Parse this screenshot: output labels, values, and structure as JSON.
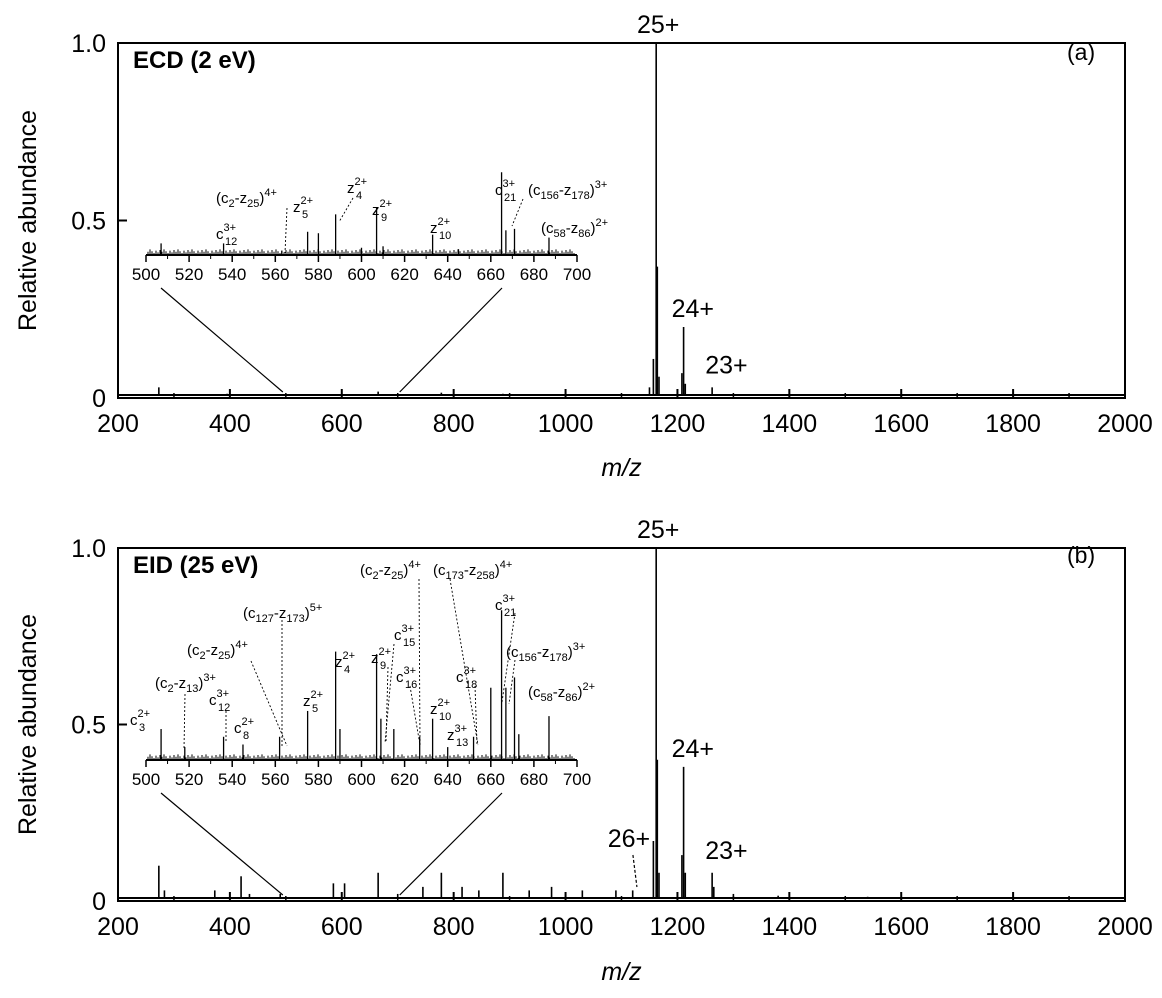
{
  "chart_data": [
    {
      "type": "line",
      "panel_letter": "(a)",
      "annotation": "ECD (2 eV)",
      "xlabel": "m/z",
      "ylabel": "Relative abundance",
      "xlim": [
        200,
        2000
      ],
      "ylim": [
        0,
        1.0
      ],
      "xticks": [
        200,
        400,
        600,
        800,
        1000,
        1200,
        1400,
        1600,
        1800,
        2000
      ],
      "ytick_labels": [
        "0",
        "0.5",
        "1.0"
      ],
      "yticks": [
        0,
        0.5,
        1.0
      ],
      "peaks": [
        {
          "x": 273,
          "y": 0.03
        },
        {
          "x": 395,
          "y": 0.012
        },
        {
          "x": 510,
          "y": 0.008
        },
        {
          "x": 588,
          "y": 0.01
        },
        {
          "x": 607,
          "y": 0.008
        },
        {
          "x": 665,
          "y": 0.018
        },
        {
          "x": 686,
          "y": 0.01
        },
        {
          "x": 778,
          "y": 0.015
        },
        {
          "x": 888,
          "y": 0.012
        },
        {
          "x": 1012,
          "y": 0.007
        },
        {
          "x": 1150,
          "y": 0.03
        },
        {
          "x": 1157,
          "y": 0.11
        },
        {
          "x": 1162,
          "y": 1.0
        },
        {
          "x": 1164,
          "y": 0.37
        },
        {
          "x": 1167,
          "y": 0.06
        },
        {
          "x": 1208,
          "y": 0.07
        },
        {
          "x": 1211,
          "y": 0.2
        },
        {
          "x": 1214,
          "y": 0.04
        },
        {
          "x": 1262,
          "y": 0.03
        },
        {
          "x": 1265,
          "y": 0.01
        }
      ],
      "peak_labels": [
        {
          "text": "25+",
          "x": 1162,
          "y": 1.0
        },
        {
          "text": "24+",
          "x": 1211,
          "y": 0.2
        },
        {
          "text": "23+",
          "x": 1264,
          "y": 0.03
        }
      ],
      "zoom_range": [
        500,
        700
      ],
      "inset": {
        "xlim": [
          500,
          700
        ],
        "xticks": [
          500,
          520,
          540,
          560,
          580,
          600,
          620,
          640,
          660,
          680,
          700
        ],
        "peaks": [
          {
            "x": 507,
            "y": 0.08
          },
          {
            "x": 536,
            "y": 0.08
          },
          {
            "x": 563,
            "y": 0.03
          },
          {
            "x": 575,
            "y": 0.16
          },
          {
            "x": 580,
            "y": 0.15
          },
          {
            "x": 588,
            "y": 0.28
          },
          {
            "x": 600,
            "y": 0.05
          },
          {
            "x": 607,
            "y": 0.33
          },
          {
            "x": 610,
            "y": 0.06
          },
          {
            "x": 633,
            "y": 0.14
          },
          {
            "x": 645,
            "y": 0.04
          },
          {
            "x": 665,
            "y": 0.57
          },
          {
            "x": 667,
            "y": 0.17
          },
          {
            "x": 671,
            "y": 0.18
          },
          {
            "x": 687,
            "y": 0.12
          }
        ],
        "labels": [
          {
            "base": "c",
            "sub": "12",
            "sup": "3+"
          },
          {
            "base": "(c",
            "sub": "2",
            "mid": "-z",
            "sub2": "25",
            "end": ")",
            "sup": "4+"
          },
          {
            "base": "z",
            "sub": "5",
            "sup": "2+"
          },
          {
            "base": "z",
            "sub": "4",
            "sup": "2+"
          },
          {
            "base": "z",
            "sub": "9",
            "sup": "2+"
          },
          {
            "base": "z",
            "sub": "10",
            "sup": "2+"
          },
          {
            "base": "c",
            "sub": "21",
            "sup": "3+"
          },
          {
            "base": "(c",
            "sub": "156",
            "mid": "-z",
            "sub2": "178",
            "end": ")",
            "sup": "3+"
          },
          {
            "base": "(c",
            "sub": "58",
            "mid": "-z",
            "sub2": "86",
            "end": ")",
            "sup": "2+"
          }
        ]
      }
    },
    {
      "type": "line",
      "panel_letter": "(b)",
      "annotation": "EID (25 eV)",
      "xlabel": "m/z",
      "ylabel": "Relative abundance",
      "xlim": [
        200,
        2000
      ],
      "ylim": [
        0,
        1.0
      ],
      "xticks": [
        200,
        400,
        600,
        800,
        1000,
        1200,
        1400,
        1600,
        1800,
        2000
      ],
      "ytick_labels": [
        "0",
        "0.5",
        "1.0"
      ],
      "yticks": [
        0,
        0.5,
        1.0
      ],
      "peaks": [
        {
          "x": 273,
          "y": 0.1
        },
        {
          "x": 283,
          "y": 0.03
        },
        {
          "x": 373,
          "y": 0.03
        },
        {
          "x": 420,
          "y": 0.07
        },
        {
          "x": 435,
          "y": 0.02
        },
        {
          "x": 490,
          "y": 0.02
        },
        {
          "x": 585,
          "y": 0.05
        },
        {
          "x": 605,
          "y": 0.05
        },
        {
          "x": 665,
          "y": 0.08
        },
        {
          "x": 700,
          "y": 0.02
        },
        {
          "x": 745,
          "y": 0.04
        },
        {
          "x": 778,
          "y": 0.08
        },
        {
          "x": 815,
          "y": 0.04
        },
        {
          "x": 845,
          "y": 0.03
        },
        {
          "x": 888,
          "y": 0.08
        },
        {
          "x": 935,
          "y": 0.03
        },
        {
          "x": 975,
          "y": 0.04
        },
        {
          "x": 1030,
          "y": 0.03
        },
        {
          "x": 1090,
          "y": 0.03
        },
        {
          "x": 1120,
          "y": 0.03
        },
        {
          "x": 1157,
          "y": 0.17
        },
        {
          "x": 1162,
          "y": 1.0
        },
        {
          "x": 1164,
          "y": 0.4
        },
        {
          "x": 1167,
          "y": 0.08
        },
        {
          "x": 1208,
          "y": 0.13
        },
        {
          "x": 1211,
          "y": 0.38
        },
        {
          "x": 1214,
          "y": 0.08
        },
        {
          "x": 1262,
          "y": 0.08
        },
        {
          "x": 1265,
          "y": 0.04
        },
        {
          "x": 1300,
          "y": 0.02
        },
        {
          "x": 1380,
          "y": 0.015
        },
        {
          "x": 1540,
          "y": 0.012
        },
        {
          "x": 1720,
          "y": 0.01
        }
      ],
      "peak_labels": [
        {
          "text": "25+",
          "x": 1162,
          "y": 1.0
        },
        {
          "text": "24+",
          "x": 1211,
          "y": 0.38
        },
        {
          "text": "23+",
          "x": 1264,
          "y": 0.08
        },
        {
          "text": "26+",
          "x": 1124,
          "y": 0.04
        }
      ],
      "zoom_range": [
        500,
        700
      ],
      "inset": {
        "xlim": [
          500,
          700
        ],
        "xticks": [
          500,
          520,
          540,
          560,
          580,
          600,
          620,
          640,
          660,
          680,
          700
        ],
        "peaks": [
          {
            "x": 507,
            "y": 0.12
          },
          {
            "x": 518,
            "y": 0.05
          },
          {
            "x": 536,
            "y": 0.09
          },
          {
            "x": 545,
            "y": 0.06
          },
          {
            "x": 562,
            "y": 0.09
          },
          {
            "x": 575,
            "y": 0.19
          },
          {
            "x": 588,
            "y": 0.42
          },
          {
            "x": 590,
            "y": 0.12
          },
          {
            "x": 607,
            "y": 0.41
          },
          {
            "x": 609,
            "y": 0.16
          },
          {
            "x": 615,
            "y": 0.12
          },
          {
            "x": 627,
            "y": 0.09
          },
          {
            "x": 633,
            "y": 0.16
          },
          {
            "x": 640,
            "y": 0.05
          },
          {
            "x": 652,
            "y": 0.09
          },
          {
            "x": 660,
            "y": 0.28
          },
          {
            "x": 665,
            "y": 0.58
          },
          {
            "x": 667,
            "y": 0.28
          },
          {
            "x": 671,
            "y": 0.32
          },
          {
            "x": 673,
            "y": 0.1
          },
          {
            "x": 687,
            "y": 0.17
          }
        ],
        "labels": [
          {
            "base": "c",
            "sub": "3",
            "sup": "2+"
          },
          {
            "base": "(c",
            "sub": "2",
            "mid": "-z",
            "sub2": "13",
            "end": ")",
            "sup": "3+"
          },
          {
            "base": "c",
            "sub": "12",
            "sup": "3+"
          },
          {
            "base": "c",
            "sub": "8",
            "sup": "2+"
          },
          {
            "base": "(c",
            "sub": "2",
            "mid": "-z",
            "sub2": "25",
            "end": ")",
            "sup": "4+"
          },
          {
            "base": "(c",
            "sub": "127",
            "mid": "-z",
            "sub2": "173",
            "end": ")",
            "sup": "5+"
          },
          {
            "base": "z",
            "sub": "5",
            "sup": "2+"
          },
          {
            "base": "z",
            "sub": "4",
            "sup": "2+"
          },
          {
            "base": "z",
            "sub": "9",
            "sup": "2+"
          },
          {
            "base": "c",
            "sub": "15",
            "sup": "3+"
          },
          {
            "base": "c",
            "sub": "16",
            "sup": "3+"
          },
          {
            "base": "(c",
            "sub": "2",
            "mid": "-z",
            "sub2": "25",
            "end": ")",
            "sup": "4+"
          },
          {
            "base": "(c",
            "sub": "173",
            "mid": "-z",
            "sub2": "258",
            "end": ")",
            "sup": "4+"
          },
          {
            "base": "z",
            "sub": "10",
            "sup": "2+"
          },
          {
            "base": "z",
            "sub": "13",
            "sup": "3+"
          },
          {
            "base": "c",
            "sub": "18",
            "sup": "3+"
          },
          {
            "base": "c",
            "sub": "21",
            "sup": "3+"
          },
          {
            "base": "(c",
            "sub": "156",
            "mid": "-z",
            "sub2": "178",
            "end": ")",
            "sup": "3+"
          },
          {
            "base": "(c",
            "sub": "58",
            "mid": "-z",
            "sub2": "86",
            "end": ")",
            "sup": "2+"
          }
        ]
      }
    }
  ]
}
